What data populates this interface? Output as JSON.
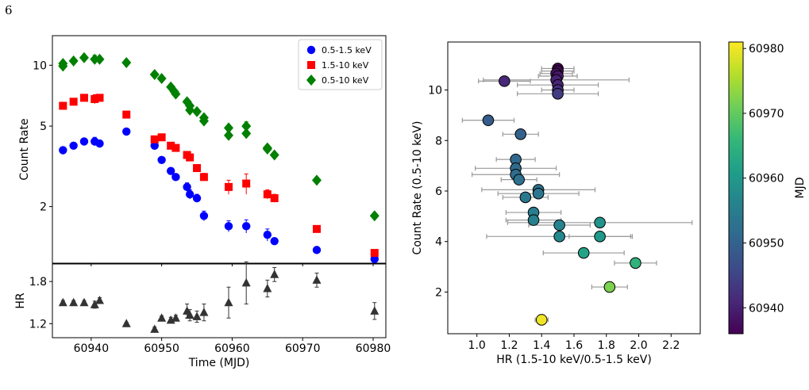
{
  "page": {
    "number": "6"
  },
  "colors": {
    "soft": "#0000ff",
    "hard": "#ff0000",
    "total": "#008000",
    "hr": "#333333",
    "errorbar_right": "#999999",
    "viridis": [
      "#440154",
      "#482878",
      "#3e4a89",
      "#31688e",
      "#26828e",
      "#1f9e89",
      "#35b779",
      "#6ece58",
      "#b5de2b",
      "#fde725"
    ]
  },
  "chart_data": [
    {
      "id": "count-rate-light-curve",
      "type": "scatter",
      "title": "",
      "xlabel": "",
      "ylabel": "Count Rate",
      "yscale": "log",
      "xlim": [
        60934.5,
        60981.8
      ],
      "ylim": [
        1.05,
        14.0
      ],
      "xticks": [
        60940,
        60950,
        60960,
        60970,
        60980
      ],
      "yticks": [
        2,
        5,
        10
      ],
      "ytick_labels": [
        "2",
        "5",
        "10"
      ],
      "legend_position": "upper-right",
      "series": [
        {
          "name": "0.5-1.5 keV",
          "color": "#0000ff",
          "marker": "circle",
          "x": [
            60936,
            60937.5,
            60939,
            60940.5,
            60941.2,
            60945,
            60949,
            60950,
            60951.3,
            60952,
            60953.6,
            60954,
            60955,
            60956,
            60959.5,
            60962,
            60965,
            60966,
            60972,
            60980.2
          ],
          "y": [
            3.8,
            4.0,
            4.2,
            4.2,
            4.1,
            4.7,
            4.0,
            3.4,
            3.0,
            2.8,
            2.5,
            2.3,
            2.2,
            1.8,
            1.6,
            1.6,
            1.45,
            1.35,
            1.22,
            1.1
          ],
          "yerr": [
            0.1,
            0.1,
            0.1,
            0.2,
            0.1,
            0.1,
            0.1,
            0.1,
            0.1,
            0.1,
            0.12,
            0.12,
            0.1,
            0.1,
            0.1,
            0.12,
            0.1,
            0.05,
            0.03,
            0.03
          ]
        },
        {
          "name": "1.5-10 keV",
          "color": "#ff0000",
          "marker": "square",
          "x": [
            60936,
            60937.5,
            60939,
            60940.5,
            60941.2,
            60945,
            60949,
            60950,
            60951.3,
            60952,
            60953.6,
            60954,
            60955,
            60956,
            60959.5,
            60962,
            60965,
            60966,
            60972,
            60980.2
          ],
          "y": [
            6.3,
            6.6,
            6.9,
            6.8,
            6.9,
            5.7,
            4.3,
            4.4,
            4.0,
            3.9,
            3.6,
            3.5,
            3.1,
            2.8,
            2.5,
            2.6,
            2.3,
            2.2,
            1.55,
            1.18
          ],
          "yerr": [
            0.15,
            0.15,
            0.15,
            0.35,
            0.2,
            0.15,
            0.15,
            0.15,
            0.12,
            0.12,
            0.12,
            0.12,
            0.12,
            0.12,
            0.2,
            0.3,
            0.12,
            0.1,
            0.05,
            0.04
          ]
        },
        {
          "name": "0.5-10 keV",
          "color": "#008000",
          "marker": "diamond",
          "x": [
            60936,
            60936,
            60937.5,
            60939,
            60940.5,
            60941.2,
            60945,
            60949,
            60950,
            60951.3,
            60951.8,
            60952,
            60953.6,
            60954,
            60954,
            60955,
            60956,
            60956,
            60959.5,
            60959.5,
            60962,
            60962,
            60965,
            60965,
            60966,
            60972,
            60980.2
          ],
          "y": [
            9.9,
            10.2,
            10.5,
            10.9,
            10.7,
            10.7,
            10.3,
            9.0,
            8.6,
            7.8,
            7.4,
            7.2,
            6.6,
            6.3,
            6.0,
            5.9,
            5.5,
            5.3,
            4.9,
            4.5,
            5.0,
            4.6,
            3.9,
            3.85,
            3.6,
            2.7,
            1.8
          ],
          "yerr": [
            0.15,
            0.15,
            0.15,
            0.15,
            0.5,
            0.2,
            0.12,
            0.12,
            0.12,
            0.12,
            0.12,
            0.12,
            0.12,
            0.12,
            0.12,
            0.12,
            0.12,
            0.12,
            0.15,
            0.15,
            0.25,
            0.25,
            0.12,
            0.12,
            0.1,
            0.06,
            0.05
          ]
        }
      ]
    },
    {
      "id": "hardness-ratio-vs-time",
      "type": "scatter",
      "title": "",
      "xlabel": "Time (MJD)",
      "ylabel": "HR",
      "xlim": [
        60934.5,
        60981.8
      ],
      "ylim": [
        1.0,
        2.05
      ],
      "xticks": [
        60940,
        60950,
        60960,
        60970,
        60980
      ],
      "yticks": [
        1.2,
        1.8
      ],
      "ytick_labels": [
        "1.2",
        "1.8"
      ],
      "series": [
        {
          "name": "",
          "color": "#333333",
          "marker": "triangle",
          "x": [
            60936,
            60937.5,
            60939,
            60940.5,
            60941.2,
            60945,
            60949,
            60950,
            60951.3,
            60952,
            60953.6,
            60954,
            60955,
            60956,
            60959.5,
            60962,
            60965,
            60966,
            60972,
            60980.2
          ],
          "y": [
            1.5,
            1.5,
            1.5,
            1.47,
            1.53,
            1.2,
            1.12,
            1.28,
            1.25,
            1.28,
            1.38,
            1.32,
            1.3,
            1.36,
            1.5,
            1.78,
            1.7,
            1.9,
            1.82,
            1.38
          ],
          "yerr": [
            0.03,
            0.03,
            0.03,
            0.05,
            0.04,
            0.02,
            0.03,
            0.03,
            0.04,
            0.04,
            0.1,
            0.08,
            0.08,
            0.12,
            0.22,
            0.3,
            0.12,
            0.1,
            0.1,
            0.12
          ]
        }
      ]
    },
    {
      "id": "count-rate-vs-hardness",
      "type": "scatter",
      "title": "",
      "xlabel": "HR (1.5-10 keV/0.5-1.5 keV)",
      "ylabel": "Count Rate (0.5-10 keV)",
      "xlim": [
        0.82,
        2.38
      ],
      "ylim": [
        0.35,
        11.9
      ],
      "xticks": [
        1.0,
        1.2,
        1.4,
        1.6,
        1.8,
        2.0,
        2.2
      ],
      "xtick_labels": [
        "1.0",
        "1.2",
        "1.4",
        "1.6",
        "1.8",
        "2.0",
        "2.2"
      ],
      "yticks": [
        2,
        4,
        6,
        8,
        10
      ],
      "color_by": "MJD",
      "series": [
        {
          "name": "",
          "x": [
            1.5,
            1.5,
            1.49,
            1.5,
            1.49,
            1.5,
            1.17,
            1.5,
            1.5,
            1.07,
            1.27,
            1.24,
            1.24,
            1.24,
            1.26,
            1.38,
            1.38,
            1.3,
            1.35,
            1.35,
            1.51,
            1.51,
            1.76,
            1.76,
            1.66,
            1.98,
            1.82,
            1.4
          ],
          "y": [
            10.85,
            10.75,
            10.65,
            10.55,
            10.4,
            10.2,
            10.35,
            10.0,
            9.85,
            8.8,
            8.25,
            7.25,
            6.9,
            6.65,
            6.45,
            6.05,
            5.9,
            5.75,
            5.15,
            4.85,
            4.65,
            4.2,
            4.75,
            4.2,
            3.55,
            3.15,
            2.2,
            0.9
          ],
          "xerr": [
            0.1,
            0.1,
            0.1,
            0.12,
            0.45,
            0.25,
            0.16,
            0.1,
            0.25,
            0.16,
            0.11,
            0.12,
            0.25,
            0.27,
            0.11,
            0.35,
            0.25,
            0.14,
            0.17,
            0.17,
            0.19,
            0.45,
            0.57,
            0.19,
            0.25,
            0.13,
            0.11,
            0.04
          ],
          "c": [
            60936,
            60937,
            60938,
            60939,
            60940,
            60940.5,
            60941,
            60942,
            60944,
            60949,
            60950,
            60951,
            60951.5,
            60952,
            60952.5,
            60953,
            60953.5,
            60954,
            60955,
            60955.5,
            60956,
            60957,
            60959,
            60960,
            60962,
            60965,
            60972,
            60980
          ]
        }
      ]
    }
  ],
  "colorbar": {
    "label": "MJD",
    "range": [
      60936,
      60981
    ],
    "ticks": [
      60940,
      60950,
      60960,
      60970,
      60980
    ],
    "tick_labels": [
      "60940",
      "60950",
      "60960",
      "60970",
      "60980"
    ]
  }
}
